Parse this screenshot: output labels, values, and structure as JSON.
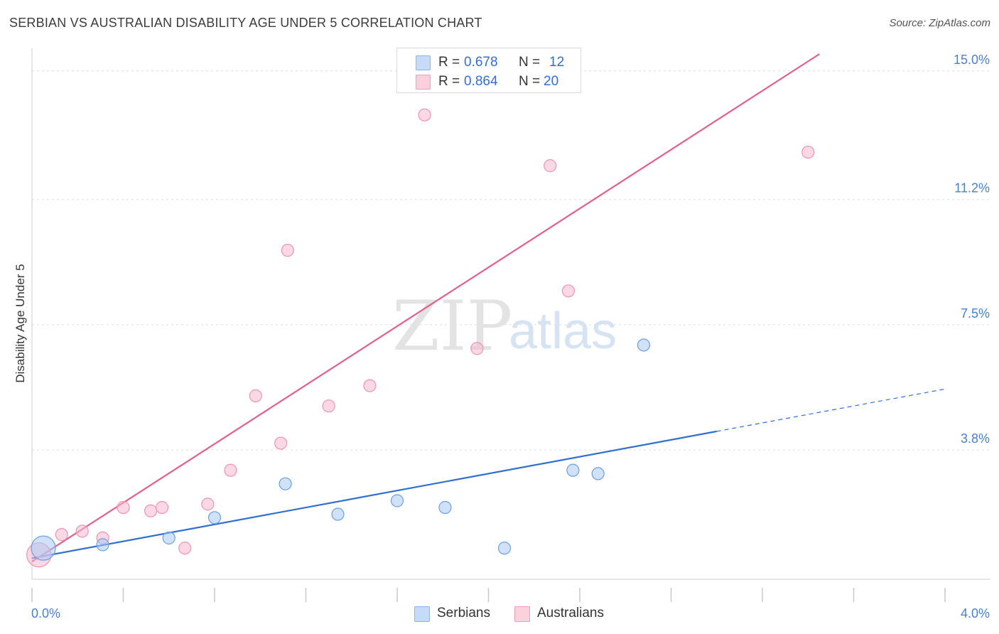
{
  "header": {
    "title": "SERBIAN VS AUSTRALIAN DISABILITY AGE UNDER 5 CORRELATION CHART",
    "source": "Source: ZipAtlas.com"
  },
  "watermark": {
    "zip": "ZIP",
    "atlas": "atlas"
  },
  "legend": {
    "rows": [
      {
        "r_label": "R =",
        "r_value": "0.678",
        "n_label": "N =",
        "n_value": "12",
        "color": "#a9c9f5"
      },
      {
        "r_label": "R =",
        "r_value": "0.864",
        "n_label": "N =",
        "n_value": "20",
        "color": "#f8b8cc"
      }
    ]
  },
  "bottom_legend": [
    {
      "label": "Serbians",
      "color": "#a9c9f5"
    },
    {
      "label": "Australians",
      "color": "#f8b8cc"
    }
  ],
  "chart_data": {
    "type": "scatter",
    "title": "SERBIAN VS AUSTRALIAN DISABILITY AGE UNDER 5 CORRELATION CHART",
    "xlabel": "",
    "ylabel": "Disability Age Under 5",
    "xlim": [
      0.0,
      4.0
    ],
    "ylim": [
      0.0,
      15.5
    ],
    "x_tick_labels": [
      "0.0%",
      "4.0%"
    ],
    "y_ticks": [
      3.8,
      7.5,
      11.2,
      15.0
    ],
    "y_tick_labels": [
      "3.8%",
      "7.5%",
      "11.2%",
      "15.0%"
    ],
    "grid": true,
    "series": [
      {
        "name": "Serbians",
        "color": "#a9c9f5",
        "stroke": "#6e9fdf",
        "line_color": "#2f6fd0",
        "points": [
          {
            "x": 0.05,
            "y": 0.9,
            "big": true
          },
          {
            "x": 0.31,
            "y": 1.0
          },
          {
            "x": 0.6,
            "y": 1.2
          },
          {
            "x": 0.8,
            "y": 1.8
          },
          {
            "x": 1.11,
            "y": 2.8
          },
          {
            "x": 1.34,
            "y": 1.9
          },
          {
            "x": 1.6,
            "y": 2.3
          },
          {
            "x": 1.81,
            "y": 2.1
          },
          {
            "x": 2.07,
            "y": 0.9
          },
          {
            "x": 2.37,
            "y": 3.2
          },
          {
            "x": 2.48,
            "y": 3.1
          },
          {
            "x": 2.68,
            "y": 6.9
          }
        ],
        "trend": {
          "x0": 0.0,
          "y0": 0.6,
          "x1": 3.0,
          "y1": 4.35,
          "dash_to_x": 4.0
        }
      },
      {
        "name": "Australians",
        "color": "#f8b8cc",
        "stroke": "#ec95b0",
        "line_color": "#e0608a",
        "points": [
          {
            "x": 0.03,
            "y": 0.7,
            "big": true
          },
          {
            "x": 0.13,
            "y": 1.3
          },
          {
            "x": 0.22,
            "y": 1.4
          },
          {
            "x": 0.31,
            "y": 1.2
          },
          {
            "x": 0.4,
            "y": 2.1
          },
          {
            "x": 0.52,
            "y": 2.0
          },
          {
            "x": 0.57,
            "y": 2.1
          },
          {
            "x": 0.67,
            "y": 0.9
          },
          {
            "x": 0.77,
            "y": 2.2
          },
          {
            "x": 0.87,
            "y": 3.2
          },
          {
            "x": 0.98,
            "y": 5.4
          },
          {
            "x": 1.09,
            "y": 4.0
          },
          {
            "x": 1.12,
            "y": 9.7
          },
          {
            "x": 1.3,
            "y": 5.1
          },
          {
            "x": 1.48,
            "y": 5.7
          },
          {
            "x": 1.72,
            "y": 13.7
          },
          {
            "x": 1.95,
            "y": 6.8
          },
          {
            "x": 2.27,
            "y": 12.2
          },
          {
            "x": 2.35,
            "y": 8.5
          },
          {
            "x": 3.4,
            "y": 12.6
          }
        ],
        "trend": {
          "x0": 0.0,
          "y0": 0.5,
          "x1": 3.45,
          "y1": 15.5
        }
      }
    ]
  }
}
